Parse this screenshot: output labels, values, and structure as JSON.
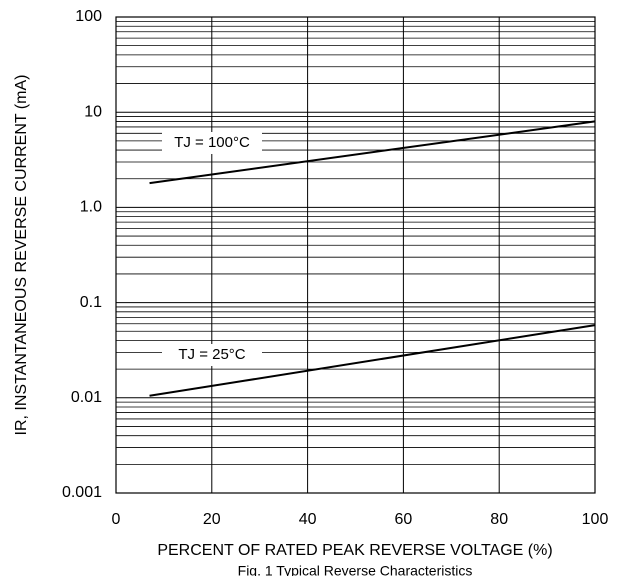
{
  "chart_data": {
    "type": "line",
    "caption": "Fig. 1 Typical Reverse Characteristics",
    "x_label": "PERCENT OF RATED PEAK REVERSE VOLTAGE (%)",
    "y_label": "IR, INSTANTANEOUS REVERSE CURRENT (mA)",
    "log_y": true,
    "grid": true,
    "xlim": [
      0,
      100
    ],
    "xticks": [
      0,
      20,
      40,
      60,
      80,
      100
    ],
    "ylim": [
      0.001,
      100
    ],
    "yticks": [
      {
        "value": 0.001,
        "label": "0.001"
      },
      0.01,
      0.1,
      {
        "value": 1,
        "label": "1.0"
      },
      10,
      100
    ],
    "series": [
      {
        "name": "TJ = 100°C",
        "color": "#000000",
        "x": [
          7,
          100
        ],
        "values": [
          1.8,
          8.0
        ]
      },
      {
        "name": "TJ = 25°C",
        "color": "#000000",
        "x": [
          7,
          100
        ],
        "values": [
          0.0105,
          0.058
        ]
      }
    ]
  }
}
